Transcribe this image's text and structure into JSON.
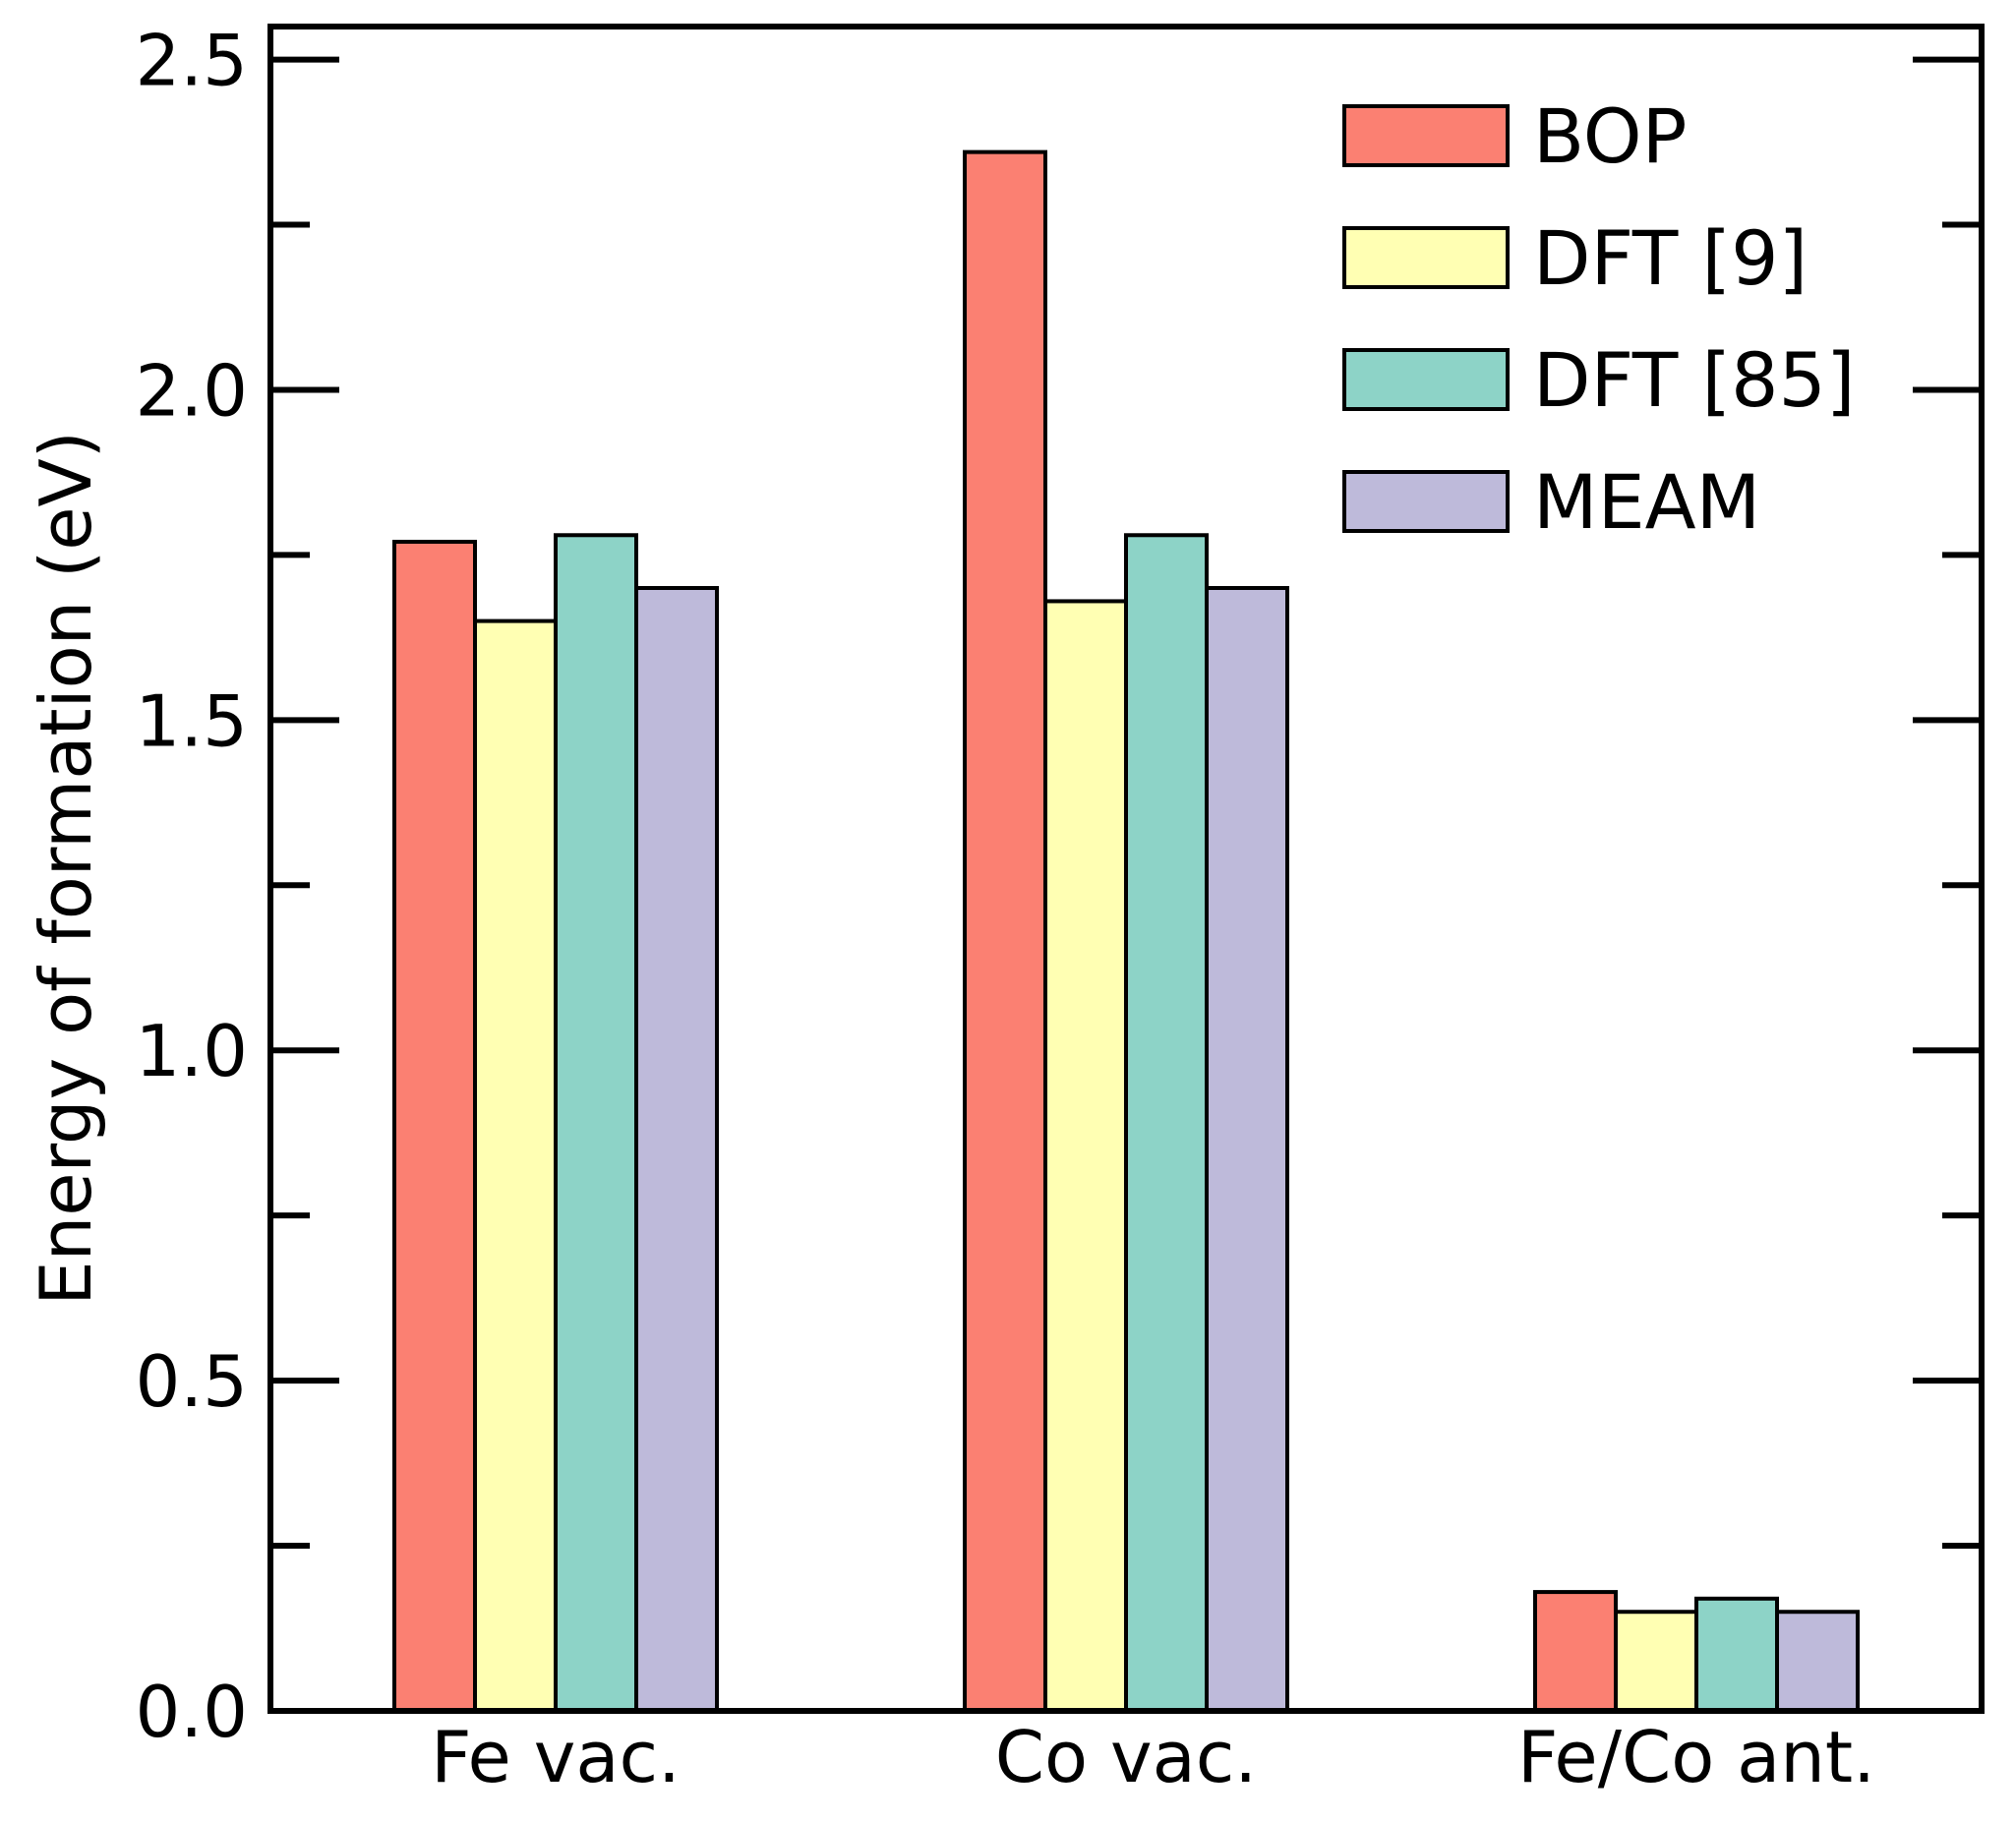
{
  "chart_data": {
    "type": "bar",
    "title": "",
    "xlabel": "",
    "ylabel": "Energy of formation (eV)",
    "ylim": [
      0,
      2.55
    ],
    "yticks_major": [
      0.0,
      0.5,
      1.0,
      1.5,
      2.0,
      2.5
    ],
    "ytick_labels": [
      "0.0",
      "0.5",
      "1.0",
      "1.5",
      "2.0",
      "2.5"
    ],
    "yticks_minor": [
      0.25,
      0.75,
      1.25,
      1.75,
      2.25
    ],
    "categories": [
      "Fe vac.",
      "Co vac.",
      "Fe/Co ant."
    ],
    "legend_position": "top-right",
    "series": [
      {
        "name": "BOP",
        "color": "#fb8072",
        "values": [
          1.77,
          2.36,
          0.18
        ]
      },
      {
        "name": "DFT [9]",
        "color": "#ffffb3",
        "values": [
          1.65,
          1.68,
          0.15
        ]
      },
      {
        "name": "DFT [85]",
        "color": "#8dd3c7",
        "values": [
          1.78,
          1.78,
          0.17
        ]
      },
      {
        "name": "MEAM",
        "color": "#bebada",
        "values": [
          1.7,
          1.7,
          0.15
        ]
      }
    ]
  }
}
